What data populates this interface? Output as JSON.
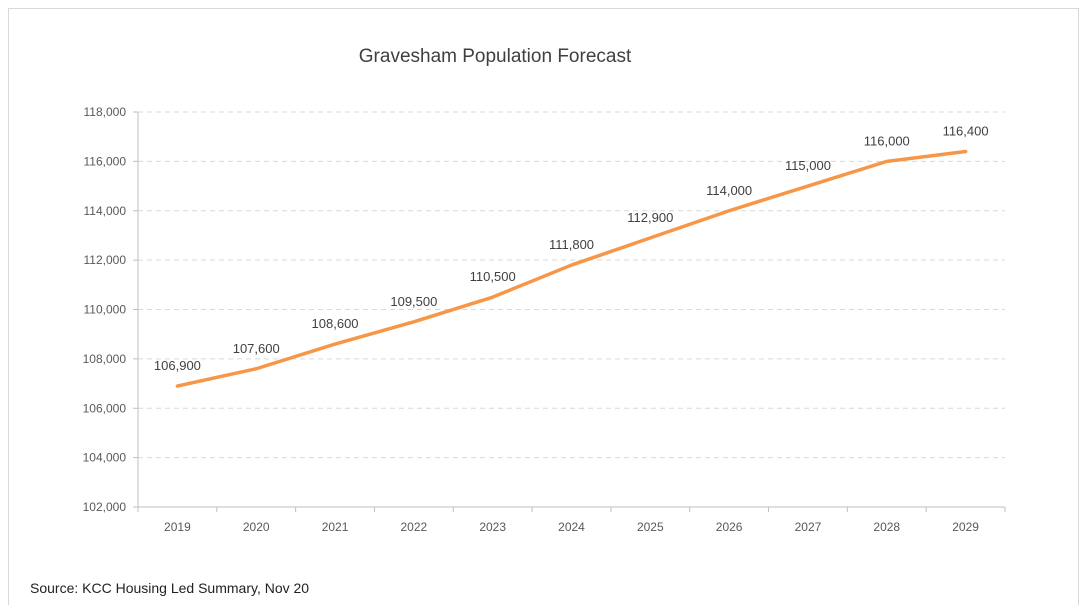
{
  "chart_data": {
    "type": "line",
    "title": "Gravesham Population Forecast",
    "xlabel": "",
    "ylabel": "",
    "categories": [
      "2019",
      "2020",
      "2021",
      "2022",
      "2023",
      "2024",
      "2025",
      "2026",
      "2027",
      "2028",
      "2029"
    ],
    "series": [
      {
        "values": [
          106900,
          107600,
          108600,
          109500,
          110500,
          111800,
          112900,
          114000,
          115000,
          116000,
          116400
        ],
        "data_labels": [
          "106,900",
          "107,600",
          "108,600",
          "109,500",
          "110,500",
          "111,800",
          "112,900",
          "114,000",
          "115,000",
          "116,000",
          "116,400"
        ],
        "color": "#F79646"
      }
    ],
    "ylim": [
      102000,
      118000
    ],
    "y_ticks": [
      "102,000",
      "104,000",
      "106,000",
      "108,000",
      "110,000",
      "112,000",
      "114,000",
      "116,000",
      "118,000"
    ],
    "grid": "horizontal-dashed",
    "legend": "none"
  },
  "source_note": "Source: KCC Housing Led Summary, Nov 20"
}
